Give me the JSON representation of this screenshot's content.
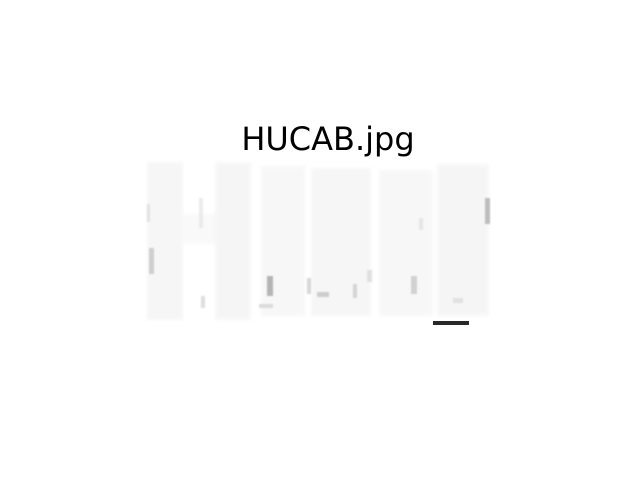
{
  "figure": {
    "title": "HUCAB.jpg"
  },
  "image": {
    "subject": "faint-washed-out-letters-image",
    "colors": {
      "background": "#ffffff",
      "ghost_light": "#f4f4f4",
      "ghost_mid": "#e2e2e2",
      "ghost_dark": "#bdbdbd",
      "ink": "#111111"
    }
  }
}
